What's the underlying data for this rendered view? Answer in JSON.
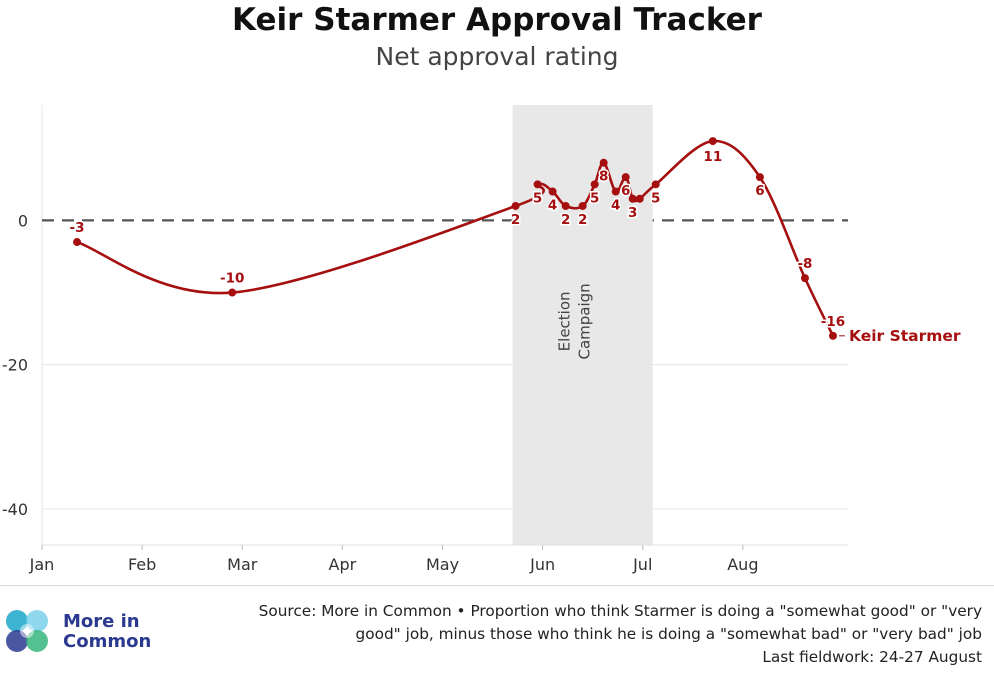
{
  "title": "Keir Starmer Approval Tracker",
  "subtitle": "Net approval rating",
  "chart_data": {
    "type": "line",
    "title": "Keir Starmer Approval Tracker",
    "subtitle": "Net approval rating",
    "xlabel": "",
    "ylabel": "",
    "ylim": [
      -45,
      16
    ],
    "yticks": [
      0,
      -20,
      -40
    ],
    "ytick_labels": [
      "0",
      "-20",
      "-40"
    ],
    "xlim": [
      0,
      8.05
    ],
    "xticks": [
      0,
      1,
      2,
      3,
      4,
      5,
      6,
      7
    ],
    "xtick_labels": [
      "Jan",
      "Feb",
      "Mar",
      "Apr",
      "May",
      "Jun",
      "Jul",
      "Aug"
    ],
    "grid": "horizontal",
    "reference_line": {
      "y": 0,
      "style": "dashed"
    },
    "shaded_region": {
      "x_start": 4.7,
      "x_end": 6.1,
      "label": "Election Campaign"
    },
    "series": [
      {
        "name": "Keir Starmer",
        "color": "#a50f0f",
        "x": [
          0.35,
          1.9,
          4.73,
          4.95,
          5.1,
          5.23,
          5.4,
          5.52,
          5.61,
          5.73,
          5.83,
          5.9,
          5.97,
          6.13,
          6.7,
          7.17,
          7.62,
          7.9
        ],
        "y": [
          -3,
          -10,
          2,
          5,
          4,
          2,
          2,
          5,
          8,
          4,
          6,
          3,
          3,
          5,
          11,
          6,
          -8,
          -16
        ],
        "labels": [
          "-3",
          "-10",
          "2",
          "5",
          "4",
          "2",
          "2",
          "5",
          "8",
          "4",
          "6",
          "3",
          "",
          "5",
          "11",
          "6",
          "-8",
          "-16"
        ]
      }
    ]
  },
  "source": {
    "line1": "Source: More in Common • Proportion who think Starmer is doing a \"somewhat good\" or \"very",
    "line2": "good\" job, minus those who think he is doing a \"somewhat bad\" or \"very bad\" job",
    "line3": "Last fieldwork: 24-27 August"
  },
  "logo": {
    "line1": "More in",
    "line2": "Common",
    "colors": [
      "#1aa7c9",
      "#7bd0ea",
      "#2b3a8f",
      "#37b67e"
    ]
  }
}
